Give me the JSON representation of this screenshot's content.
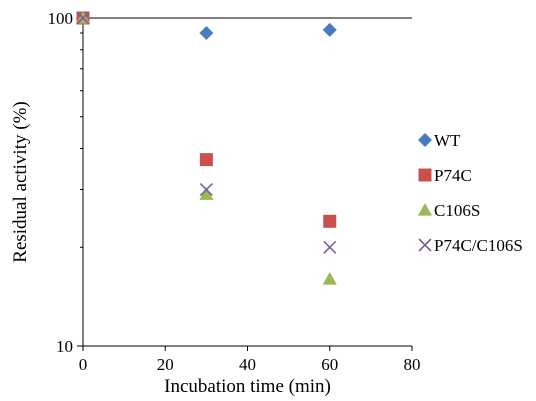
{
  "chart_data": {
    "type": "scatter",
    "title": "",
    "xlabel": "Incubation time (min)",
    "ylabel": "Residual activity (%)",
    "xlim": [
      0,
      80
    ],
    "ylim": [
      10,
      100
    ],
    "yscale": "log",
    "xticks": [
      "0",
      "20",
      "40",
      "60",
      "80"
    ],
    "yticks": [
      "10",
      "100"
    ],
    "grid": false,
    "legend_position": "right",
    "series": [
      {
        "name": "WT",
        "marker": "diamond",
        "color": "#4a7bbf",
        "x": [
          0,
          30,
          60
        ],
        "y": [
          100,
          90,
          92
        ]
      },
      {
        "name": "P74C",
        "marker": "square",
        "color": "#c9504d",
        "x": [
          0,
          30,
          60
        ],
        "y": [
          100,
          37,
          24
        ]
      },
      {
        "name": "C106S",
        "marker": "triangle",
        "color": "#98b954",
        "x": [
          0,
          30,
          60
        ],
        "y": [
          100,
          29,
          16
        ]
      },
      {
        "name": "P74C/C106S",
        "marker": "x",
        "color": "#7d5fa0",
        "x": [
          0,
          30,
          60
        ],
        "y": [
          100,
          30,
          20
        ]
      }
    ]
  }
}
